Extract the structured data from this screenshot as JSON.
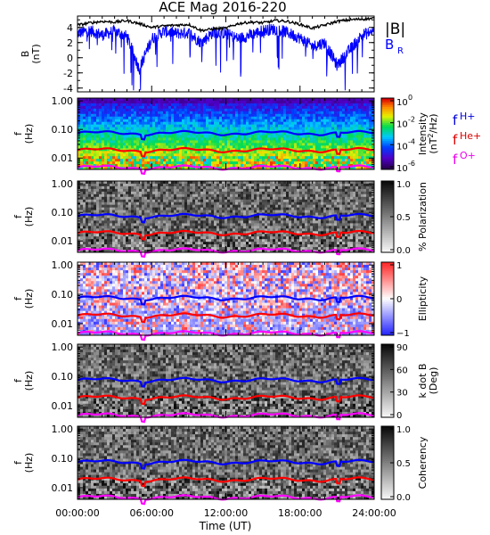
{
  "chart_data": {
    "type": "heatmap",
    "title": "ACE Mag 2016-220",
    "xlabel": "Time (UT)",
    "x_ticks": [
      "00:00:00",
      "06:00:00",
      "12:00:00",
      "18:00:00",
      "24:00:00"
    ],
    "xlim_hours": [
      0,
      24
    ],
    "panels": [
      {
        "kind": "line",
        "ylabel": "B",
        "yunit": "(nT)",
        "ylim": [
          -4.5,
          5.5
        ],
        "yticks": [
          "4",
          "2",
          "0",
          "-2",
          "-4"
        ],
        "yticks_values": [
          4,
          2,
          0,
          -2,
          -4
        ],
        "legend": [
          {
            "label": "|B|",
            "color": "#000000"
          },
          {
            "label": "B",
            "sub": "R",
            "color": "#0000ff"
          }
        ],
        "series": [
          {
            "name": "|B|",
            "color": "#000000",
            "x": [
              0,
              1,
              2,
              3,
              4,
              5,
              6,
              7,
              8,
              9,
              10,
              11,
              12,
              13,
              14,
              15,
              16,
              17,
              18,
              19,
              20,
              21,
              22,
              23,
              24
            ],
            "y": [
              4.3,
              4.6,
              4.8,
              4.7,
              4.9,
              4.5,
              4.0,
              4.2,
              4.3,
              4.4,
              3.6,
              3.8,
              3.9,
              4.5,
              4.7,
              4.6,
              4.9,
              4.8,
              4.4,
              3.9,
              4.3,
              4.8,
              5.0,
              5.1,
              5.2
            ]
          },
          {
            "name": "B",
            "color": "#0000ff",
            "x": [
              0,
              1,
              2,
              3,
              4,
              5,
              6,
              7,
              8,
              9,
              10,
              11,
              12,
              13,
              14,
              15,
              16,
              17,
              18,
              19,
              20,
              21,
              22,
              23,
              24
            ],
            "y": [
              3.2,
              3.6,
              3.0,
              3.5,
              2.8,
              -1.5,
              2.5,
              3.5,
              3.2,
              3.3,
              2.0,
              3.4,
              3.2,
              2.5,
              3.0,
              3.6,
              3.8,
              3.3,
              2.6,
              1.5,
              2.0,
              -1.0,
              1.0,
              3.0,
              3.5
            ]
          }
        ]
      },
      {
        "kind": "spectrogram",
        "ylabel": "f",
        "yunit": "(Hz)",
        "yticks": [
          "1.00",
          "0.10",
          "0.01"
        ],
        "yticks_values": [
          1.0,
          0.1,
          0.01
        ],
        "ylim": [
          0.004,
          1.25
        ],
        "colorbar": {
          "colormap": "rainbow",
          "label": "Intensity",
          "unit_prefix": "(nT",
          "unit_sup": "2",
          "unit_suffix": "/Hz)",
          "ticks": [
            {
              "base": "10",
              "exp": "0"
            },
            {
              "base": "10",
              "exp": "-2"
            },
            {
              "base": "10",
              "exp": "-4"
            },
            {
              "base": "10",
              "exp": "-6"
            }
          ]
        },
        "legend": [
          {
            "label": "f",
            "sub": "H+",
            "color": "#0000dd"
          },
          {
            "label": "f",
            "sub": "He+",
            "color": "#dd0000"
          },
          {
            "label": "f",
            "sub": "O+",
            "color": "#ee00ee"
          }
        ]
      },
      {
        "kind": "spectrogram",
        "ylabel": "f",
        "yunit": "(Hz)",
        "yticks": [
          "1.00",
          "0.10",
          "0.01"
        ],
        "yticks_values": [
          1.0,
          0.1,
          0.01
        ],
        "ylim": [
          0.004,
          1.25
        ],
        "colorbar": {
          "colormap": "gray",
          "label": "% Polarization",
          "ticks": [
            "1.0",
            "0.5",
            "0.0"
          ]
        }
      },
      {
        "kind": "spectrogram",
        "ylabel": "f",
        "yunit": "(Hz)",
        "yticks": [
          "1.00",
          "0.10",
          "0.01"
        ],
        "yticks_values": [
          1.0,
          0.1,
          0.01
        ],
        "ylim": [
          0.004,
          1.25
        ],
        "colorbar": {
          "colormap": "bwr",
          "label": "Ellipticity",
          "ticks": [
            "1",
            "0",
            "−1"
          ]
        }
      },
      {
        "kind": "spectrogram",
        "ylabel": "f",
        "yunit": "(Hz)",
        "yticks": [
          "1.00",
          "0.10",
          "0.01"
        ],
        "yticks_values": [
          1.0,
          0.1,
          0.01
        ],
        "ylim": [
          0.004,
          1.25
        ],
        "colorbar": {
          "colormap": "gray",
          "label": "k dot B",
          "label2": "(Deg)",
          "ticks": [
            "90",
            "60",
            "30",
            "0"
          ]
        }
      },
      {
        "kind": "spectrogram",
        "ylabel": "f",
        "yunit": "(Hz)",
        "yticks": [
          "1.00",
          "0.10",
          "0.01"
        ],
        "yticks_values": [
          1.0,
          0.1,
          0.01
        ],
        "ylim": [
          0.004,
          1.25
        ],
        "colorbar": {
          "colormap": "gray",
          "label": "Coherency",
          "ticks": [
            "1.0",
            "0.5",
            "0.0"
          ]
        }
      }
    ],
    "gyrofrequency_lines": [
      {
        "name": "H+",
        "color": "#0000ff",
        "value_hz": 0.075
      },
      {
        "name": "He+",
        "color": "#ff0000",
        "value_hz": 0.019
      },
      {
        "name": "O+",
        "color": "#ff00ff",
        "value_hz": 0.0047
      }
    ]
  }
}
